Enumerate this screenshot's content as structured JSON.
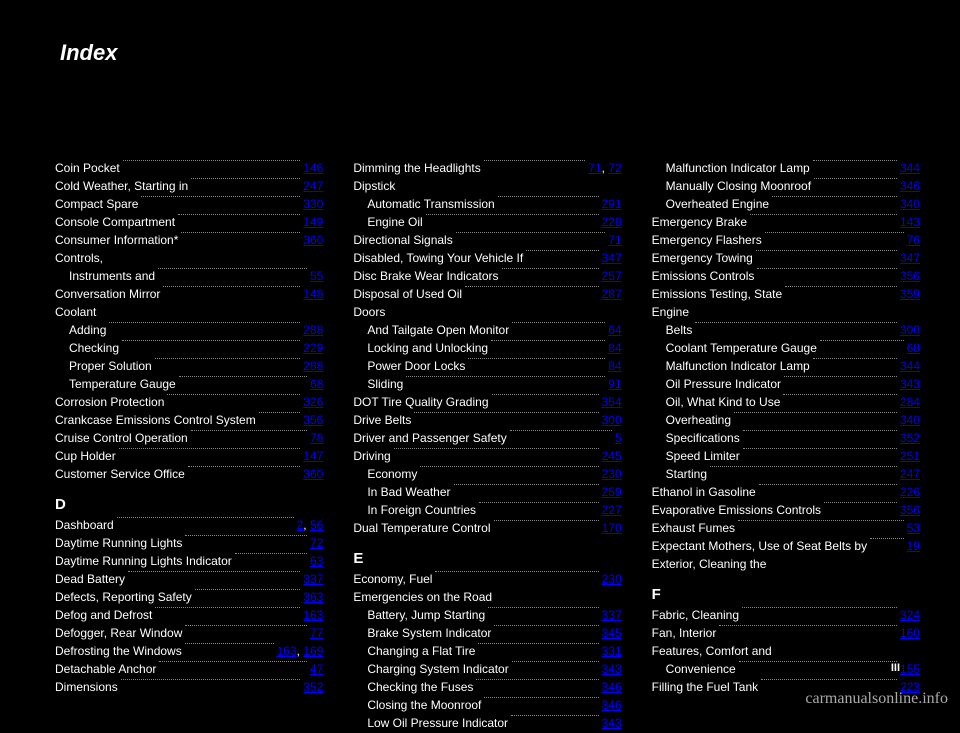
{
  "title": "Index",
  "watermark": "carmanualsonline.info",
  "footer_page": "III",
  "link_color": "#0000ff",
  "text_color": "#ffffff",
  "bg_color": "#000000",
  "columns": [
    {
      "items": [
        {
          "indent": 0,
          "type": "entry",
          "label": "Coin Pocket",
          "pages": [
            "146"
          ]
        },
        {
          "indent": 0,
          "type": "entry",
          "label": "Cold Weather, Starting in",
          "pages": [
            "247"
          ]
        },
        {
          "indent": 0,
          "type": "entry",
          "label": "Compact Spare",
          "pages": [
            "330"
          ]
        },
        {
          "indent": 0,
          "type": "entry",
          "label": "Console Compartment",
          "pages": [
            "149"
          ]
        },
        {
          "indent": 0,
          "type": "entry",
          "label": "Consumer Information*",
          "pages": [
            "360"
          ]
        },
        {
          "indent": 0,
          "type": "heading",
          "label": "Controls,"
        },
        {
          "indent": 1,
          "type": "entry",
          "label": "Instruments and",
          "pages": [
            "55"
          ]
        },
        {
          "indent": 0,
          "type": "entry",
          "label": "Conversation Mirror",
          "pages": [
            "148"
          ]
        },
        {
          "indent": 0,
          "type": "heading",
          "label": "Coolant"
        },
        {
          "indent": 1,
          "type": "entry",
          "label": "Adding",
          "pages": [
            "288"
          ]
        },
        {
          "indent": 1,
          "type": "entry",
          "label": "Checking",
          "pages": [
            "229"
          ]
        },
        {
          "indent": 1,
          "type": "entry",
          "label": "Proper Solution",
          "pages": [
            "288"
          ]
        },
        {
          "indent": 1,
          "type": "entry",
          "label": "Temperature Gauge",
          "pages": [
            "68"
          ]
        },
        {
          "indent": 0,
          "type": "entry",
          "label": "Corrosion Protection",
          "pages": [
            "326"
          ]
        },
        {
          "indent": 0,
          "type": "entry",
          "label": "Crankcase Emissions Control System",
          "pages": [
            "356"
          ]
        },
        {
          "indent": 0,
          "type": "entry",
          "label": "Cruise Control Operation",
          "pages": [
            "78"
          ]
        },
        {
          "indent": 0,
          "type": "entry",
          "label": "Cup Holder",
          "pages": [
            "147"
          ]
        },
        {
          "indent": 0,
          "type": "entry",
          "label": "Customer Service Office",
          "pages": [
            "360"
          ]
        },
        {
          "indent": 0,
          "type": "section",
          "label": "D"
        },
        {
          "indent": 0,
          "type": "entry",
          "label": "Dashboard",
          "pages": [
            "2",
            "56"
          ]
        },
        {
          "indent": 0,
          "type": "entry",
          "label": "Daytime Running Lights",
          "pages": [
            "72"
          ]
        },
        {
          "indent": 0,
          "type": "entry",
          "label": "Daytime Running Lights Indicator",
          "pages": [
            "63"
          ]
        },
        {
          "indent": 0,
          "type": "entry",
          "label": "Dead Battery",
          "pages": [
            "337"
          ]
        },
        {
          "indent": 0,
          "type": "entry",
          "label": "Defects, Reporting Safety",
          "pages": [
            "363"
          ]
        },
        {
          "indent": 0,
          "type": "entry",
          "label": "Defog and Defrost",
          "pages": [
            "163"
          ]
        },
        {
          "indent": 0,
          "type": "entry",
          "label": "Defogger, Rear Window",
          "pages": [
            "77"
          ]
        },
        {
          "indent": 0,
          "type": "entry",
          "label": "Defrosting the Windows",
          "pages": [
            "163",
            "169"
          ]
        },
        {
          "indent": 0,
          "type": "entry",
          "label": "Detachable Anchor",
          "pages": [
            "47"
          ]
        },
        {
          "indent": 0,
          "type": "entry",
          "label": "Dimensions",
          "pages": [
            "352"
          ]
        }
      ]
    },
    {
      "items": [
        {
          "indent": 0,
          "type": "entry",
          "label": "Dimming the Headlights",
          "pages": [
            "71",
            "72"
          ]
        },
        {
          "indent": 0,
          "type": "heading",
          "label": "Dipstick"
        },
        {
          "indent": 1,
          "type": "entry",
          "label": "Automatic Transmission",
          "pages": [
            "291"
          ]
        },
        {
          "indent": 1,
          "type": "entry",
          "label": "Engine Oil",
          "pages": [
            "228"
          ]
        },
        {
          "indent": 0,
          "type": "entry",
          "label": "Directional Signals",
          "pages": [
            "71"
          ]
        },
        {
          "indent": 0,
          "type": "entry",
          "label": "Disabled, Towing Your Vehicle If",
          "pages": [
            "347"
          ]
        },
        {
          "indent": 0,
          "type": "entry",
          "label": "Disc Brake Wear Indicators",
          "pages": [
            "257"
          ]
        },
        {
          "indent": 0,
          "type": "entry",
          "label": "Disposal of Used Oil",
          "pages": [
            "287"
          ]
        },
        {
          "indent": 0,
          "type": "heading",
          "label": "Doors"
        },
        {
          "indent": 1,
          "type": "entry",
          "label": "And Tailgate Open Monitor",
          "pages": [
            "64"
          ]
        },
        {
          "indent": 1,
          "type": "entry",
          "label": "Locking and Unlocking",
          "pages": [
            "84"
          ]
        },
        {
          "indent": 1,
          "type": "entry",
          "label": "Power Door Locks",
          "pages": [
            "84"
          ]
        },
        {
          "indent": 1,
          "type": "entry",
          "label": "Sliding",
          "pages": [
            "91"
          ]
        },
        {
          "indent": 0,
          "type": "entry",
          "label": "DOT Tire Quality Grading",
          "pages": [
            "354"
          ]
        },
        {
          "indent": 0,
          "type": "entry",
          "label": "Drive Belts",
          "pages": [
            "300"
          ]
        },
        {
          "indent": 0,
          "type": "entry",
          "label": "Driver and Passenger Safety",
          "pages": [
            "5"
          ]
        },
        {
          "indent": 0,
          "type": "entry",
          "label": "Driving",
          "pages": [
            "245"
          ]
        },
        {
          "indent": 1,
          "type": "entry",
          "label": "Economy",
          "pages": [
            "230"
          ]
        },
        {
          "indent": 1,
          "type": "entry",
          "label": "In Bad Weather",
          "pages": [
            "259"
          ]
        },
        {
          "indent": 1,
          "type": "entry",
          "label": "In Foreign Countries",
          "pages": [
            "227"
          ]
        },
        {
          "indent": 0,
          "type": "entry",
          "label": "Dual Temperature Control",
          "pages": [
            "170"
          ]
        },
        {
          "indent": 0,
          "type": "section",
          "label": "E"
        },
        {
          "indent": 0,
          "type": "entry",
          "label": "Economy, Fuel",
          "pages": [
            "230"
          ]
        },
        {
          "indent": 0,
          "type": "heading",
          "label": "Emergencies on the Road"
        },
        {
          "indent": 1,
          "type": "entry",
          "label": "Battery, Jump Starting",
          "pages": [
            "337"
          ]
        },
        {
          "indent": 1,
          "type": "entry",
          "label": "Brake System Indicator",
          "pages": [
            "345"
          ]
        },
        {
          "indent": 1,
          "type": "entry",
          "label": "Changing a Flat Tire",
          "pages": [
            "331"
          ]
        },
        {
          "indent": 1,
          "type": "entry",
          "label": "Charging System Indicator",
          "pages": [
            "343"
          ]
        },
        {
          "indent": 1,
          "type": "entry",
          "label": "Checking the Fuses",
          "pages": [
            "346"
          ]
        },
        {
          "indent": 1,
          "type": "entry",
          "label": "Closing the Moonroof",
          "pages": [
            "346"
          ]
        },
        {
          "indent": 1,
          "type": "entry",
          "label": "Low Oil Pressure Indicator",
          "pages": [
            "343"
          ]
        }
      ]
    },
    {
      "items": [
        {
          "indent": 1,
          "type": "entry",
          "label": "Malfunction Indicator Lamp",
          "pages": [
            "344"
          ]
        },
        {
          "indent": 1,
          "type": "entry",
          "label": "Manually Closing Moonroof",
          "pages": [
            "346"
          ]
        },
        {
          "indent": 1,
          "type": "entry",
          "label": "Overheated Engine",
          "pages": [
            "340"
          ]
        },
        {
          "indent": 0,
          "type": "entry",
          "label": "Emergency Brake",
          "pages": [
            "143"
          ]
        },
        {
          "indent": 0,
          "type": "entry",
          "label": "Emergency Flashers",
          "pages": [
            "76"
          ]
        },
        {
          "indent": 0,
          "type": "entry",
          "label": "Emergency Towing",
          "pages": [
            "347"
          ]
        },
        {
          "indent": 0,
          "type": "entry",
          "label": "Emissions Controls",
          "pages": [
            "356"
          ]
        },
        {
          "indent": 0,
          "type": "entry",
          "label": "Emissions Testing, State",
          "pages": [
            "359"
          ]
        },
        {
          "indent": 0,
          "type": "heading",
          "label": "Engine"
        },
        {
          "indent": 1,
          "type": "entry",
          "label": "Belts",
          "pages": [
            "300"
          ]
        },
        {
          "indent": 1,
          "type": "entry",
          "label": "Coolant Temperature Gauge",
          "pages": [
            "68"
          ]
        },
        {
          "indent": 1,
          "type": "entry",
          "label": "Malfunction Indicator Lamp",
          "pages": [
            "344"
          ]
        },
        {
          "indent": 1,
          "type": "entry",
          "label": "Oil Pressure Indicator",
          "pages": [
            "343"
          ]
        },
        {
          "indent": 1,
          "type": "entry",
          "label": "Oil, What Kind to Use",
          "pages": [
            "284"
          ]
        },
        {
          "indent": 1,
          "type": "entry",
          "label": "Overheating",
          "pages": [
            "340"
          ]
        },
        {
          "indent": 1,
          "type": "entry",
          "label": "Specifications",
          "pages": [
            "352"
          ]
        },
        {
          "indent": 1,
          "type": "entry",
          "label": "Speed Limiter",
          "pages": [
            "251"
          ]
        },
        {
          "indent": 1,
          "type": "entry",
          "label": "Starting",
          "pages": [
            "247"
          ]
        },
        {
          "indent": 0,
          "type": "entry",
          "label": "Ethanol in Gasoline",
          "pages": [
            "226"
          ]
        },
        {
          "indent": 0,
          "type": "entry",
          "label": "Evaporative Emissions Controls",
          "pages": [
            "356"
          ]
        },
        {
          "indent": 0,
          "type": "entry",
          "label": "Exhaust Fumes",
          "pages": [
            "53"
          ]
        },
        {
          "indent": 0,
          "type": "entry",
          "label": "Expectant Mothers, Use of Seat Belts by",
          "pages": [
            "19"
          ]
        },
        {
          "indent": 0,
          "type": "heading",
          "label": "Exterior, Cleaning the"
        },
        {
          "indent": 0,
          "type": "section",
          "label": "F"
        },
        {
          "indent": 0,
          "type": "entry",
          "label": "Fabric, Cleaning",
          "pages": [
            "324"
          ]
        },
        {
          "indent": 0,
          "type": "entry",
          "label": "Fan, Interior",
          "pages": [
            "160"
          ]
        },
        {
          "indent": 0,
          "type": "heading",
          "label": "Features, Comfort and"
        },
        {
          "indent": 1,
          "type": "entry",
          "label": "Convenience",
          "pages": [
            "155"
          ]
        },
        {
          "indent": 0,
          "type": "entry",
          "label": "Filling the Fuel Tank",
          "pages": [
            "223"
          ]
        }
      ]
    }
  ]
}
